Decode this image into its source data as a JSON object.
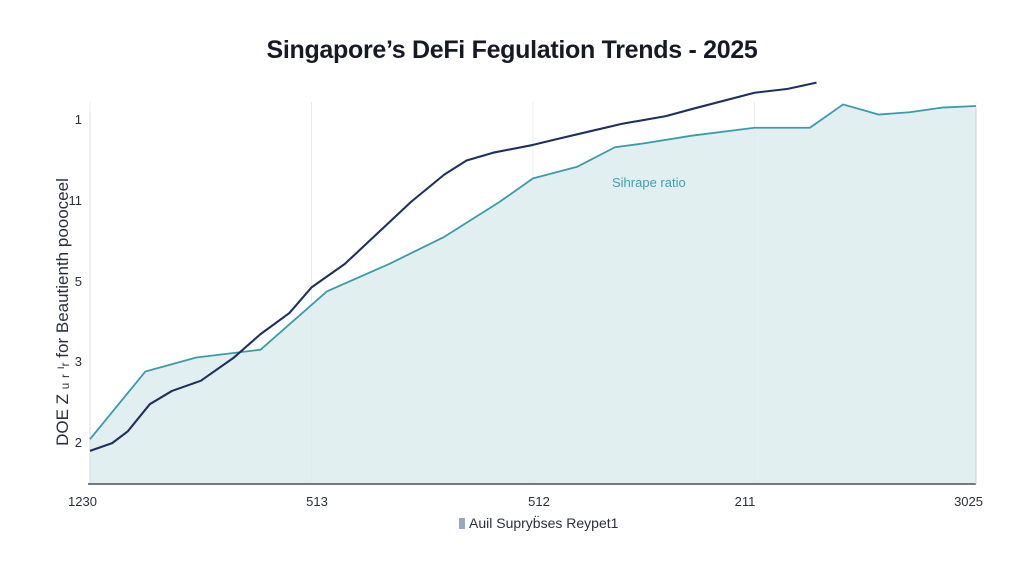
{
  "chart_data": {
    "type": "line",
    "title": "Singapore’s DeFi Fegulation Trends - 2025",
    "ylabel": "DOE Z ᵤ ᵣ ᶦᵣ for Beautienth poooceel",
    "xlabel": "",
    "y_tick_labels": [
      "2",
      "3",
      "5",
      "11",
      "1"
    ],
    "x_tick_labels": [
      "1230",
      "513",
      "512",
      "211",
      "3025"
    ],
    "x_tick_positions": [
      0,
      1,
      2,
      3,
      4
    ],
    "ylim": [
      0,
      4.2
    ],
    "xlim": [
      0,
      4
    ],
    "grid": true,
    "legend": {
      "placement": "bottom-center",
      "label": "Auil Supryb̈ses Reypet1"
    },
    "annotation": {
      "text": "Sihrape ratio",
      "x": 2.4,
      "y": 3.3
    },
    "colors": {
      "teal": "#3a9bab",
      "navy": "#1f3060",
      "area": "#dcecef",
      "grid": "#e8ecf0"
    },
    "series": [
      {
        "name": "",
        "color": "#3a9bab",
        "area": true,
        "x": [
          0,
          0.25,
          0.48,
          0.77,
          1.07,
          1.35,
          1.6,
          1.85,
          2.0,
          2.2,
          2.37,
          2.5,
          2.72,
          3.0,
          3.25,
          3.4,
          3.56,
          3.7,
          3.85,
          4.0
        ],
        "y": [
          0.1,
          0.97,
          1.15,
          1.25,
          2.0,
          2.35,
          2.7,
          3.15,
          3.45,
          3.6,
          3.85,
          3.9,
          4.0,
          4.1,
          4.1,
          4.4,
          4.27,
          4.3,
          4.36,
          4.38
        ]
      },
      {
        "name": "",
        "color": "#1f3060",
        "area": false,
        "x": [
          0,
          0.1,
          0.17,
          0.27,
          0.37,
          0.5,
          0.65,
          0.77,
          0.9,
          1.0,
          1.15,
          1.3,
          1.45,
          1.6,
          1.7,
          1.82,
          2.0,
          2.1,
          2.25,
          2.4,
          2.6,
          2.73,
          3.0,
          3.15,
          3.28
        ],
        "y": [
          -0.05,
          0.05,
          0.2,
          0.55,
          0.72,
          0.85,
          1.15,
          1.45,
          1.72,
          2.05,
          2.35,
          2.75,
          3.15,
          3.5,
          3.68,
          3.78,
          3.88,
          3.95,
          4.05,
          4.15,
          4.25,
          4.35,
          4.55,
          4.6,
          4.68
        ]
      }
    ]
  }
}
